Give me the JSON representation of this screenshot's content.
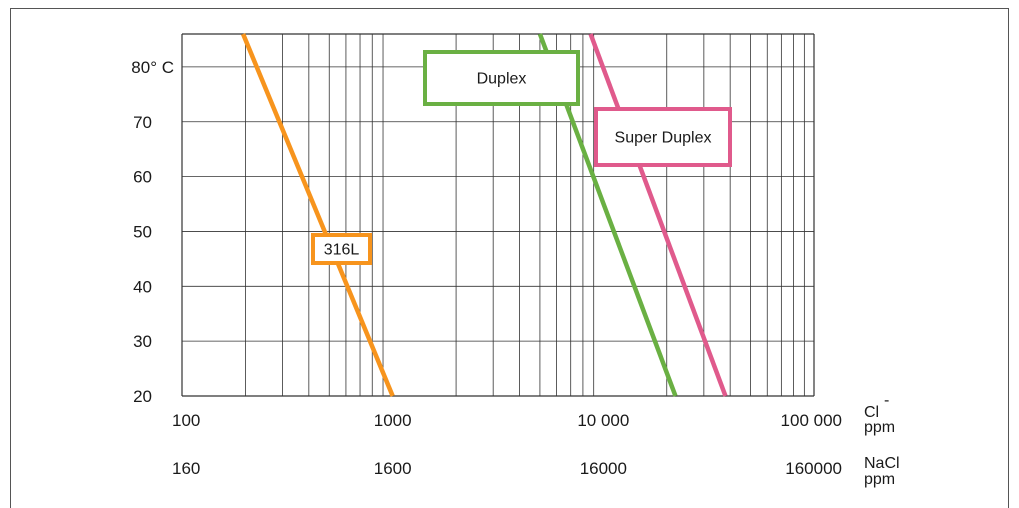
{
  "chart_data": {
    "type": "line",
    "x_scale": "log",
    "xlim": [
      100,
      100000
    ],
    "ylim": [
      20,
      86
    ],
    "grid": true,
    "y_ticks": [
      20,
      30,
      40,
      50,
      60,
      70,
      80
    ],
    "y_top_label": "80° C",
    "x_ticks_cl": [
      {
        "value": 100,
        "label": "100"
      },
      {
        "value": 1000,
        "label": "1000"
      },
      {
        "value": 10000,
        "label": "10 000"
      },
      {
        "value": 100000,
        "label": "100 000"
      }
    ],
    "x_ticks_nacl": [
      "160",
      "1600",
      "16000",
      "160000"
    ],
    "x_unit_cl": {
      "name": "Cl",
      "sup": "-",
      "unit": "ppm"
    },
    "x_unit_nacl": {
      "name": "NaCl",
      "unit": "ppm"
    },
    "series": [
      {
        "name": "316L",
        "color": "#f7941d",
        "points": [
          [
            195,
            86
          ],
          [
            1000,
            20
          ]
        ]
      },
      {
        "name": "Duplex",
        "color": "#6ab043",
        "points": [
          [
            5000,
            86
          ],
          [
            22000,
            20
          ]
        ]
      },
      {
        "name": "Super Duplex",
        "color": "#e05a8c",
        "points": [
          [
            8700,
            86
          ],
          [
            38000,
            20
          ]
        ]
      }
    ]
  }
}
